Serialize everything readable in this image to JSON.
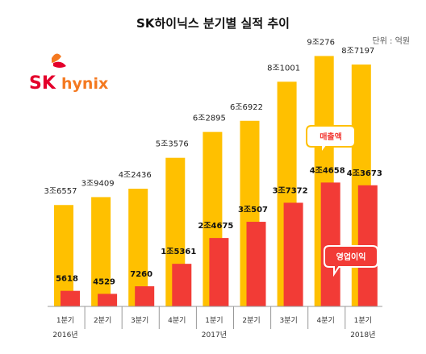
{
  "title": "SK하이닉스 분기별 실적 추이",
  "unit_label": "단위 : 억원",
  "logo": {
    "sk": "SK",
    "hynix": "hynix"
  },
  "colors": {
    "revenue": "#FFC000",
    "profit": "#F23B36",
    "axis": "#999999"
  },
  "chart_data": {
    "type": "bar",
    "categories": [
      "1분기",
      "2분기",
      "3분기",
      "4분기",
      "1분기",
      "2분기",
      "3분기",
      "4분기",
      "1분기"
    ],
    "year_labels": [
      {
        "index": 0,
        "text": "2016년"
      },
      {
        "index": 4,
        "text": "2017년"
      },
      {
        "index": 8,
        "text": "2018년"
      }
    ],
    "series": [
      {
        "name": "매출액",
        "color": "#FFC000",
        "values": [
          36557,
          39409,
          42436,
          53576,
          62895,
          66922,
          81001,
          90276,
          87197
        ],
        "labels": [
          "3조6557",
          "3조9409",
          "4조2436",
          "5조3576",
          "6조2895",
          "6조6922",
          "8조1001",
          "9조276",
          "8조7197"
        ]
      },
      {
        "name": "영업이익",
        "color": "#F23B36",
        "values": [
          5618,
          4529,
          7260,
          15361,
          24675,
          30507,
          37372,
          44658,
          43673
        ],
        "labels": [
          "5618",
          "4529",
          "7260",
          "1조5361",
          "2조4675",
          "3조507",
          "3조7372",
          "4조4658",
          "4조3673"
        ]
      }
    ],
    "ylim": [
      0,
      100000
    ],
    "grid": false,
    "legend": "callouts"
  }
}
